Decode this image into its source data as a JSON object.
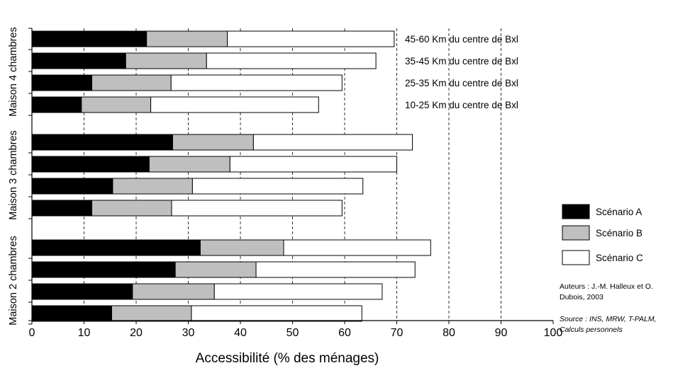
{
  "chart_data": {
    "type": "bar",
    "orientation": "horizontal",
    "stacked": true,
    "title": "",
    "xlabel": "Accessibilité (% des ménages)",
    "xlim": [
      0,
      100
    ],
    "xticks": [
      0,
      10,
      20,
      30,
      40,
      50,
      60,
      70,
      80,
      90,
      100
    ],
    "grid": "vertical dashed lines from 60 to 90",
    "legend_position": "right",
    "colors": {
      "Scénario A": "#000000",
      "Scénario B": "#bfbfbf",
      "Scénario C": "#ffffff"
    },
    "groups": [
      {
        "name": "Maison 4 chambres",
        "categories": [
          "45-60 Km du centre de Bxl",
          "35-45 Km du centre de Bxl",
          "25-35 Km du centre de Bxl",
          "10-25 Km du centre de Bxl"
        ],
        "series": [
          {
            "name": "Scénario A",
            "values": [
              22,
              18,
              11.5,
              9.5
            ]
          },
          {
            "name": "Scénario B",
            "values": [
              15.5,
              15.5,
              15.2,
              13.3
            ]
          },
          {
            "name": "Scénario C",
            "values": [
              32,
              32.5,
              32.8,
              32.2
            ]
          }
        ]
      },
      {
        "name": "Maison 3 chambres",
        "categories": [
          "45-60 Km du centre de Bxl",
          "35-45 Km du centre de Bxl",
          "25-35 Km du centre de Bxl",
          "10-25 Km du centre de Bxl"
        ],
        "series": [
          {
            "name": "Scénario A",
            "values": [
              27,
              22.5,
              15.5,
              11.5
            ]
          },
          {
            "name": "Scénario B",
            "values": [
              15.5,
              15.5,
              15.3,
              15.3
            ]
          },
          {
            "name": "Scénario C",
            "values": [
              30.5,
              32,
              32.7,
              32.7
            ]
          }
        ]
      },
      {
        "name": "Maison 2 chambres",
        "categories": [
          "45-60 Km du centre de Bxl",
          "35-45 Km du centre de Bxl",
          "25-35 Km du centre de Bxl",
          "10-25 Km du centre de Bxl"
        ],
        "series": [
          {
            "name": "Scénario A",
            "values": [
              32.3,
              27.5,
              19.3,
              15.3
            ]
          },
          {
            "name": "Scénario B",
            "values": [
              16,
              15.5,
              15.7,
              15.3
            ]
          },
          {
            "name": "Scénario C",
            "values": [
              28.2,
              30.5,
              32.2,
              32.7
            ]
          }
        ]
      }
    ],
    "legend": [
      "Scénario A",
      "Scénario B",
      "Scénario C"
    ]
  },
  "notes": {
    "authors": "Auteurs : J.-M. Halleux et O. Dubois, 2003",
    "source": "Source : INS, MRW, T-PALM, Calculs personnels"
  }
}
